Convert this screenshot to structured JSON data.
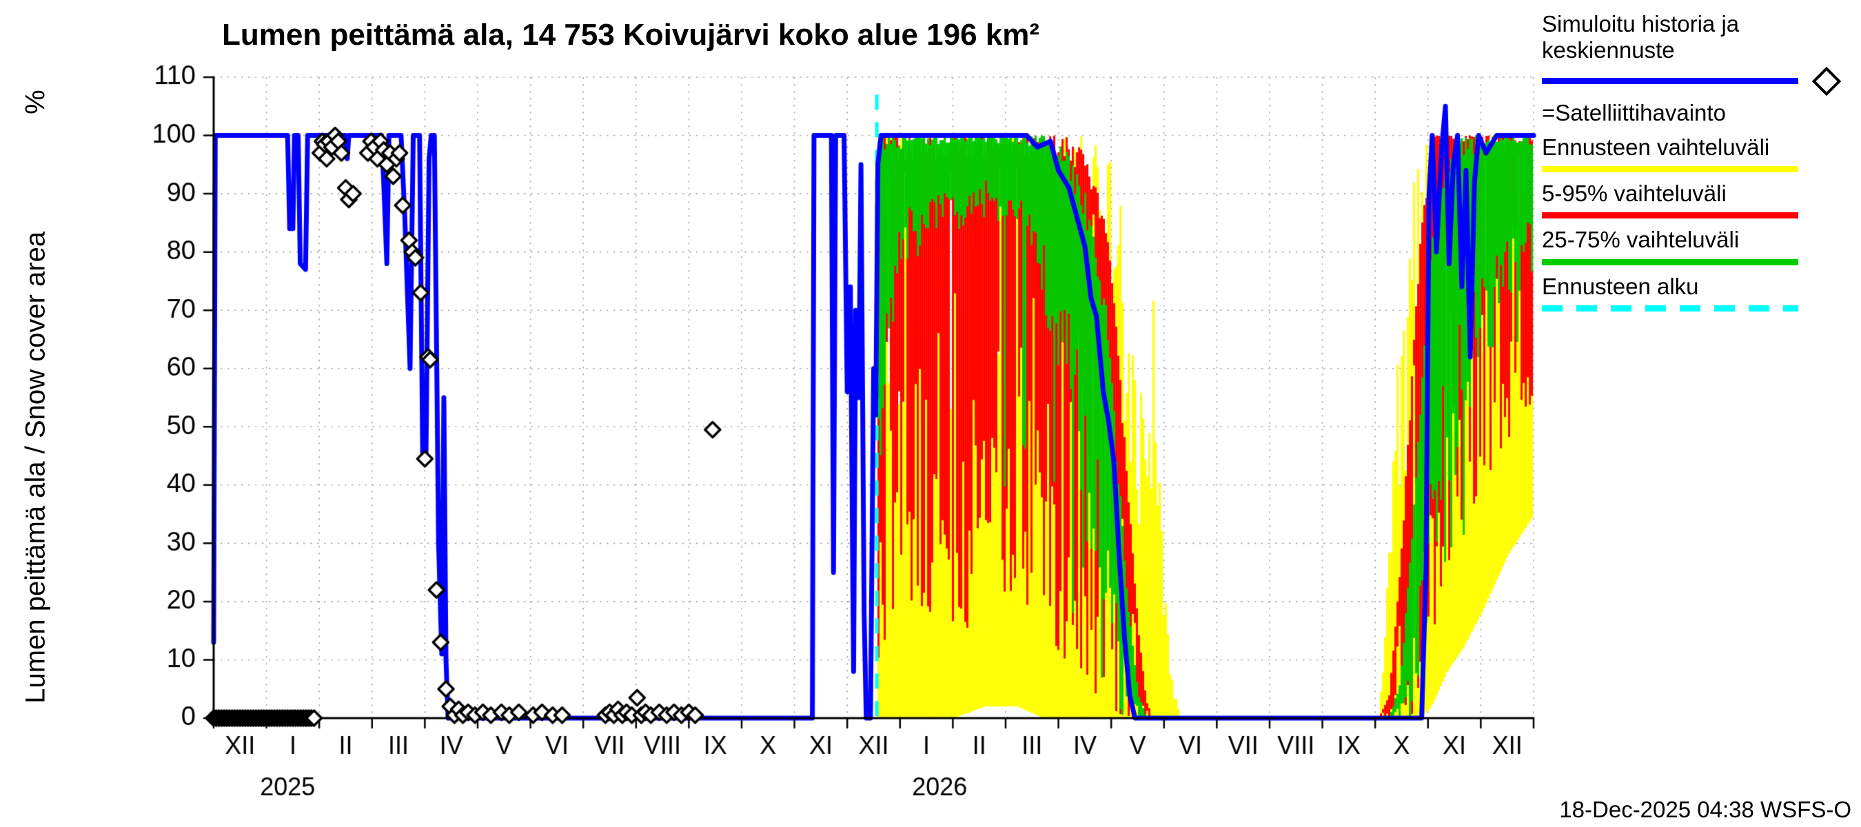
{
  "header": {
    "title": "Lumen peittämä ala, 14 753 Koivujärvi koko alue 196 km²"
  },
  "y_axis": {
    "label": "Lumen peittämä ala / Snow cover area",
    "unit": "%"
  },
  "footer": {
    "timestamp": "18-Dec-2025 04:38 WSFS-O"
  },
  "colors": {
    "history_mean": "#0000ff",
    "satellite": "#000000",
    "forecast_full_range": "#ffff00",
    "range_5_95": "#ff0000",
    "range_25_75": "#00cc00",
    "forecast_start": "#00ffff",
    "grid": "#aaaaaa",
    "axis": "#000000"
  },
  "legend": {
    "entries": [
      {
        "label": "Simuloitu historia ja keskiennuste",
        "swatch": "line",
        "color": "#0000ff"
      },
      {
        "label": "=Satelliittihavainto",
        "swatch": "diamond",
        "color": "#000000"
      },
      {
        "label": "Ennusteen vaihteluväli",
        "swatch": "line",
        "color": "#ffff00"
      },
      {
        "label": "5-95% vaihteluväli",
        "swatch": "line",
        "color": "#ff0000"
      },
      {
        "label": "25-75% vaihteluväli",
        "swatch": "line",
        "color": "#00cc00"
      },
      {
        "label": "Ennusteen alku",
        "swatch": "dashed-line",
        "color": "#00ffff"
      }
    ]
  },
  "chart_data": {
    "type": "line",
    "title": "Lumen peittämä ala, 14 753 Koivujärvi koko alue 196 km²",
    "ylabel": "Lumen peittämä ala / Snow cover area (%)",
    "ylim": [
      0,
      110
    ],
    "y_ticks": [
      0,
      10,
      20,
      30,
      40,
      50,
      60,
      70,
      80,
      90,
      100,
      110
    ],
    "x_unit": "months, 0 = 1 Dec 2024, axis spans Dec 2024 - Dec 2026",
    "x_tick_labels": [
      "XII",
      "I",
      "II",
      "III",
      "IV",
      "V",
      "VI",
      "VII",
      "VIII",
      "IX",
      "X",
      "XI",
      "XII",
      "I",
      "II",
      "III",
      "IV",
      "V",
      "VI",
      "VII",
      "VIII",
      "IX",
      "X",
      "XI",
      "XII"
    ],
    "year_labels": [
      {
        "label": "2025",
        "x": 1.4
      },
      {
        "label": "2026",
        "x": 13.75
      }
    ],
    "forecast_start_x": 12.56,
    "blue_line": [
      [
        0.0,
        13
      ],
      [
        0.03,
        100
      ],
      [
        1.4,
        100
      ],
      [
        1.44,
        84
      ],
      [
        1.5,
        84
      ],
      [
        1.53,
        100
      ],
      [
        1.6,
        100
      ],
      [
        1.64,
        78
      ],
      [
        1.74,
        77
      ],
      [
        1.78,
        100
      ],
      [
        2.5,
        100
      ],
      [
        2.53,
        96
      ],
      [
        2.56,
        100
      ],
      [
        3.18,
        100
      ],
      [
        3.22,
        92
      ],
      [
        3.28,
        78
      ],
      [
        3.32,
        100
      ],
      [
        3.55,
        100
      ],
      [
        3.62,
        86
      ],
      [
        3.72,
        60
      ],
      [
        3.78,
        100
      ],
      [
        3.9,
        100
      ],
      [
        3.96,
        44
      ],
      [
        4.02,
        44
      ],
      [
        4.08,
        96
      ],
      [
        4.12,
        100
      ],
      [
        4.18,
        100
      ],
      [
        4.26,
        30
      ],
      [
        4.32,
        11
      ],
      [
        4.36,
        55
      ],
      [
        4.4,
        10
      ],
      [
        4.44,
        0
      ],
      [
        11.34,
        0
      ],
      [
        11.37,
        100
      ],
      [
        11.7,
        100
      ],
      [
        11.74,
        25
      ],
      [
        11.78,
        100
      ],
      [
        11.94,
        100
      ],
      [
        12.0,
        56
      ],
      [
        12.06,
        74
      ],
      [
        12.12,
        8
      ],
      [
        12.16,
        70
      ],
      [
        12.22,
        55
      ],
      [
        12.26,
        95
      ],
      [
        12.32,
        18
      ],
      [
        12.36,
        0
      ],
      [
        12.44,
        0
      ],
      [
        12.5,
        60
      ],
      [
        12.54,
        52
      ],
      [
        12.58,
        95
      ],
      [
        12.64,
        100
      ],
      [
        15.4,
        100
      ],
      [
        15.6,
        98
      ],
      [
        15.85,
        99
      ],
      [
        16.0,
        94
      ],
      [
        16.2,
        91
      ],
      [
        16.35,
        86
      ],
      [
        16.5,
        81
      ],
      [
        16.62,
        72
      ],
      [
        16.72,
        69
      ],
      [
        16.85,
        56
      ],
      [
        16.95,
        51
      ],
      [
        17.05,
        44
      ],
      [
        17.15,
        28
      ],
      [
        17.25,
        14
      ],
      [
        17.35,
        4
      ],
      [
        17.45,
        0
      ],
      [
        22.88,
        0
      ],
      [
        22.96,
        25
      ],
      [
        23.02,
        90
      ],
      [
        23.08,
        100
      ],
      [
        23.16,
        80
      ],
      [
        23.26,
        98
      ],
      [
        23.33,
        105
      ],
      [
        23.4,
        78
      ],
      [
        23.48,
        95
      ],
      [
        23.56,
        100
      ],
      [
        23.64,
        74
      ],
      [
        23.72,
        94
      ],
      [
        23.8,
        62
      ],
      [
        23.88,
        92
      ],
      [
        23.96,
        100
      ],
      [
        24.1,
        97
      ],
      [
        24.3,
        100
      ],
      [
        25.0,
        100
      ]
    ],
    "satellite_zero_run": {
      "x_start": 0.0,
      "x_end": 1.9,
      "step": 0.05,
      "y": 0
    },
    "satellite_observations": [
      [
        2.02,
        97
      ],
      [
        2.06,
        99
      ],
      [
        2.1,
        98.5
      ],
      [
        2.14,
        96
      ],
      [
        2.18,
        99
      ],
      [
        2.24,
        98
      ],
      [
        2.3,
        100
      ],
      [
        2.36,
        99
      ],
      [
        2.42,
        97
      ],
      [
        2.5,
        91
      ],
      [
        2.56,
        89
      ],
      [
        2.64,
        90
      ],
      [
        2.92,
        97
      ],
      [
        2.98,
        99
      ],
      [
        3.04,
        98
      ],
      [
        3.1,
        96
      ],
      [
        3.16,
        99
      ],
      [
        3.22,
        97.5
      ],
      [
        3.28,
        95
      ],
      [
        3.34,
        97
      ],
      [
        3.4,
        93
      ],
      [
        3.46,
        96
      ],
      [
        3.52,
        97
      ],
      [
        3.58,
        88
      ],
      [
        3.7,
        82
      ],
      [
        3.76,
        80
      ],
      [
        3.82,
        79
      ],
      [
        3.92,
        73
      ],
      [
        4.0,
        44.5
      ],
      [
        4.06,
        62
      ],
      [
        4.1,
        61.5
      ],
      [
        4.22,
        22
      ],
      [
        4.3,
        13
      ],
      [
        4.4,
        5
      ],
      [
        4.48,
        2
      ],
      [
        4.56,
        0.5
      ],
      [
        4.64,
        1.5
      ],
      [
        4.72,
        0.5
      ],
      [
        4.82,
        1
      ],
      [
        4.95,
        0.5
      ],
      [
        5.1,
        1
      ],
      [
        5.25,
        0.5
      ],
      [
        5.45,
        1
      ],
      [
        5.6,
        0.5
      ],
      [
        5.78,
        1
      ],
      [
        6.05,
        0.5
      ],
      [
        6.22,
        1
      ],
      [
        6.42,
        0.5
      ],
      [
        6.6,
        0.5
      ],
      [
        7.42,
        0.5
      ],
      [
        7.5,
        1
      ],
      [
        7.58,
        0.5
      ],
      [
        7.66,
        1.5
      ],
      [
        7.74,
        0.5
      ],
      [
        7.82,
        1
      ],
      [
        7.92,
        0.5
      ],
      [
        8.02,
        3.5
      ],
      [
        8.1,
        0.5
      ],
      [
        8.18,
        1
      ],
      [
        8.28,
        0.5
      ],
      [
        8.44,
        1
      ],
      [
        8.58,
        0.5
      ],
      [
        8.72,
        1
      ],
      [
        8.86,
        0.5
      ],
      [
        9.0,
        1
      ],
      [
        9.12,
        0.5
      ],
      [
        9.45,
        49.5
      ]
    ],
    "forecast_bands_columns": [
      "x",
      "full_lo",
      "full_hi",
      "p5",
      "p95",
      "p25",
      "p75"
    ],
    "forecast_bands": [
      [
        12.56,
        0,
        100,
        10,
        100,
        45,
        100
      ],
      [
        12.8,
        0,
        100,
        12,
        100,
        70,
        100
      ],
      [
        13.2,
        0,
        100,
        10,
        100,
        82,
        100
      ],
      [
        14.0,
        0,
        100,
        12,
        100,
        86,
        100
      ],
      [
        14.6,
        2,
        100,
        20,
        100,
        88,
        100
      ],
      [
        15.2,
        2,
        100,
        22,
        100,
        85,
        100
      ],
      [
        15.7,
        0,
        100,
        15,
        100,
        75,
        100
      ],
      [
        16.1,
        0,
        100,
        10,
        100,
        60,
        98
      ],
      [
        16.5,
        0,
        100,
        6,
        97,
        40,
        90
      ],
      [
        16.9,
        0,
        97,
        2,
        85,
        20,
        70
      ],
      [
        17.1,
        0,
        92,
        0,
        65,
        8,
        45
      ],
      [
        17.3,
        0,
        80,
        0,
        40,
        2,
        20
      ],
      [
        17.5,
        0,
        62,
        0,
        15,
        0,
        4
      ],
      [
        17.65,
        0,
        45,
        0,
        3,
        0,
        0
      ],
      [
        17.78,
        0,
        78,
        0,
        0,
        0,
        0
      ],
      [
        17.92,
        0,
        35,
        0,
        0,
        0,
        0
      ],
      [
        18.1,
        0,
        8,
        0,
        0,
        0,
        0
      ],
      [
        18.3,
        0,
        0,
        0,
        0,
        0,
        0
      ],
      [
        22.05,
        0,
        0,
        0,
        0,
        0,
        0
      ],
      [
        22.25,
        0,
        30,
        0,
        4,
        0,
        0
      ],
      [
        22.45,
        0,
        70,
        0,
        25,
        0,
        6
      ],
      [
        22.65,
        0,
        92,
        0,
        55,
        4,
        28
      ],
      [
        22.85,
        0,
        100,
        4,
        85,
        12,
        55
      ],
      [
        23.05,
        2,
        100,
        12,
        100,
        28,
        85
      ],
      [
        23.35,
        8,
        100,
        22,
        100,
        45,
        96
      ],
      [
        23.65,
        12,
        100,
        30,
        100,
        55,
        100
      ],
      [
        24.0,
        18,
        100,
        38,
        100,
        65,
        100
      ],
      [
        24.5,
        28,
        100,
        48,
        100,
        75,
        100
      ],
      [
        25.0,
        35,
        100,
        55,
        100,
        80,
        100
      ]
    ]
  }
}
